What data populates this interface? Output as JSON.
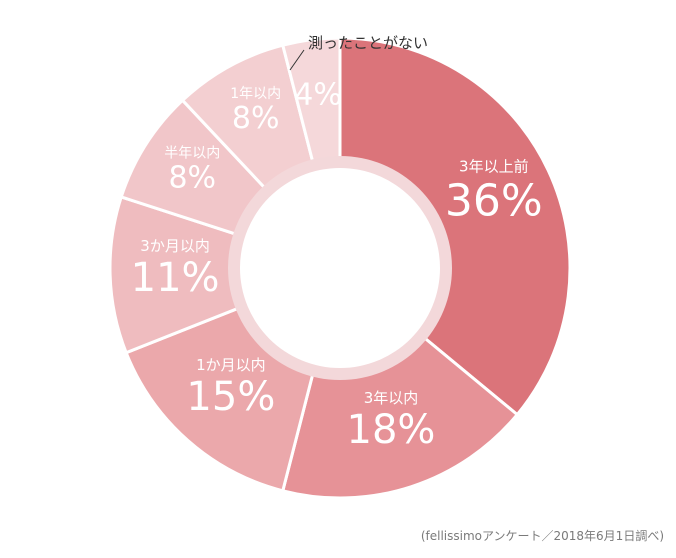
{
  "chart_data": {
    "type": "pie",
    "donut": true,
    "start_angle_deg": 0,
    "direction": "clockwise",
    "slices": [
      {
        "label": "3年以上前",
        "value": 36,
        "display": "36%",
        "color": "#db747a"
      },
      {
        "label": "3年以内",
        "value": 18,
        "display": "18%",
        "color": "#e69297"
      },
      {
        "label": "1か月以内",
        "value": 15,
        "display": "15%",
        "color": "#eba8ab"
      },
      {
        "label": "3か月以内",
        "value": 11,
        "display": "11%",
        "color": "#efbcbf"
      },
      {
        "label": "半年以内",
        "value": 8,
        "display": "8%",
        "color": "#f1c6c9"
      },
      {
        "label": "1年以内",
        "value": 8,
        "display": "8%",
        "color": "#f3cfd1"
      },
      {
        "label": "測ったことがない",
        "value": 4,
        "display": "4%",
        "color": "#f5d8da"
      }
    ]
  },
  "source_note": "(fellissimoアンケート／2018年6月1日調べ)"
}
